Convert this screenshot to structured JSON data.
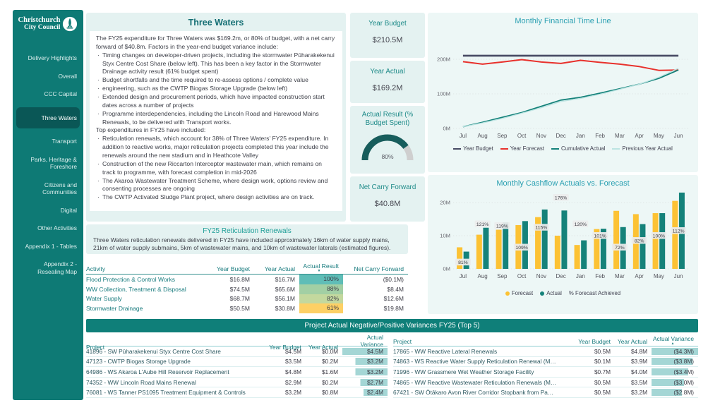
{
  "sidebar": {
    "logo_line1": "Christchurch",
    "logo_line2": "City Council",
    "items": [
      {
        "label": "Delivery Highlights",
        "selected": false
      },
      {
        "label": "Overall",
        "selected": false
      },
      {
        "label": "CCC Capital",
        "selected": false
      },
      {
        "label": "Three Waters",
        "selected": true
      },
      {
        "label": "Transport",
        "selected": false
      },
      {
        "label": "Parks, Heritage & Foreshore",
        "selected": false
      },
      {
        "label": "Citizens and Communities",
        "selected": false
      },
      {
        "label": "Digital",
        "selected": false
      },
      {
        "label": "Other Activities",
        "selected": false
      },
      {
        "label": "Appendix 1 - Tables",
        "selected": false
      },
      {
        "label": "Appendix 2 - Resealing Map",
        "selected": false
      }
    ]
  },
  "narrative": {
    "title": "Three Waters",
    "intro": "The FY25 expenditure for Three Waters was $169.2m, or 80% of budget, with a net carry forward of $40.8m.  Factors in the year-end budget variance include:",
    "bullets1": [
      "Timing changes on developer-driven projects, including the stormwater Pūharakekenui Styx Centre Cost Share (below left). This has been a key factor in the Stormwater Drainage activity result (61% budget spent)",
      "Budget shortfalls and the time required to re-assess options / complete value",
      "engineering, such as the CWTP Biogas Storage Upgrade (below left)",
      "Extended design and procurement periods, which have impacted construction start dates across a number of projects",
      "Programme interdependencies, including the Lincoln Road and Harewood Mains Renewals, to be delivered with Transport works."
    ],
    "mid": "Top expenditures in FY25 have included:",
    "bullets2": [
      "Reticulation renewals, which account for 38% of Three Waters' FY25 expenditure. In addition to reactive works, major reticulation projects completed this year include the renewals around the new stadium and in Heathcote Valley",
      "Construction of the new Riccarton Interceptor wastewater main, which remains on track to programme, with forecast completion in mid-2026",
      "The Akaroa Wastewater Treatment Scheme, where design work, options review and consenting processes are ongoing",
      "The CWTP Activated Sludge Plant project, where design activities are on track."
    ]
  },
  "kpis": [
    {
      "label": "Year Budget",
      "value": "$210.5M"
    },
    {
      "label": "Year Actual",
      "value": "$169.2M"
    },
    {
      "label": "Actual Result (% Budget Spent)",
      "value": "80%",
      "numeric": 80
    },
    {
      "label": "Net Carry Forward",
      "value": "$40.8M"
    }
  ],
  "retic": {
    "title": "FY25 Reticulation Renewals",
    "text": "Three Waters reticulation renewals delivered in FY25 have included approximately 16km of water supply mains, 21km of water supply submains, 5km of wastewater mains, and 10km of wastewater laterals (estimated figures)."
  },
  "activity_table": {
    "headers": [
      "Activity",
      "Year Budget",
      "Year Actual",
      "Actual Result",
      "Net Carry Forward"
    ],
    "rows": [
      {
        "activity": "Flood Protection & Control Works",
        "budget": "$16.8M",
        "actual": "$16.7M",
        "result": "100%",
        "result_color": "#5fbdb7",
        "carry": "($0.1M)"
      },
      {
        "activity": "WW Collection, Treatment & Disposal",
        "budget": "$74.5M",
        "actual": "$65.6M",
        "result": "88%",
        "result_color": "#a2cfa4",
        "carry": "$8.4M"
      },
      {
        "activity": "Water Supply",
        "budget": "$68.7M",
        "actual": "$56.1M",
        "result": "82%",
        "result_color": "#c3d89e",
        "carry": "$12.6M"
      },
      {
        "activity": "Stormwater Drainage",
        "budget": "$50.5M",
        "actual": "$30.8M",
        "result": "61%",
        "result_color": "#fdd065",
        "carry": "$19.8M"
      }
    ]
  },
  "variances": {
    "banner": "Project Actual Negative/Positive Variances FY25 (Top 5)",
    "headers": [
      "Project",
      "Year Budget",
      "Year Actual",
      "Actual Variance"
    ],
    "bar_color": "#a4d6d5",
    "left_rows": [
      {
        "project": "41896 - SW Pūharakekenui Styx Centre Cost Share",
        "budget": "$4.5M",
        "actual": "$0.0M",
        "variance": "$4.5M"
      },
      {
        "project": "47123 - CWTP Biogas Storage Upgrade",
        "budget": "$3.5M",
        "actual": "$0.2M",
        "variance": "$3.2M"
      },
      {
        "project": "64986 - WS Akaroa L'Aube Hill Reservoir Replacement",
        "budget": "$4.8M",
        "actual": "$1.6M",
        "variance": "$3.2M"
      },
      {
        "project": "74352 - WW Lincoln Road Mains Renewal",
        "budget": "$2.9M",
        "actual": "$0.2M",
        "variance": "$2.7M"
      },
      {
        "project": "76081 - WS Tanner PS1095 Treatment Equipment & Controls",
        "budget": "$3.2M",
        "actual": "$0.8M",
        "variance": "$2.4M"
      }
    ],
    "right_rows": [
      {
        "project": "17865 - WW Reactive Lateral  Renewals",
        "budget": "$0.5M",
        "actual": "$4.8M",
        "variance": "($4.3M)"
      },
      {
        "project": "74863 - WS Reactive Water Supply Reticulation Renewal (M…",
        "budget": "$0.1M",
        "actual": "$3.9M",
        "variance": "($3.8M)"
      },
      {
        "project": "71996 - WW Grassmere Wet Weather Storage Facility",
        "budget": "$0.7M",
        "actual": "$4.0M",
        "variance": "($3.4M)"
      },
      {
        "project": "74865 - WW Reactive Wastewater Reticulation Renewals (M…",
        "budget": "$0.5M",
        "actual": "$3.5M",
        "variance": "($3.0M)"
      },
      {
        "project": "67421 - SW Ōtākaro Avon River Corridor Stopbank from Pa…",
        "budget": "$0.5M",
        "actual": "$3.2M",
        "variance": "($2.8M)"
      }
    ]
  },
  "icons": {
    "sort_desc": "▼",
    "sort_asc": "▲"
  },
  "colors": {
    "sidebar_teal": "#0e7a75",
    "selected_pill": "#0a5756",
    "banner_teal": "#0f7f79",
    "heading_teal": "#156f74",
    "chart_title_teal": "#2ba0b2",
    "gauge_fill": "#175d5c",
    "gauge_track": "#cfcfcf"
  },
  "chart_data": [
    {
      "type": "line",
      "title": "Monthly Financial Time Line",
      "x": [
        "Jul",
        "Aug",
        "Sep",
        "Oct",
        "Nov",
        "Dec",
        "Jan",
        "Feb",
        "Mar",
        "Apr",
        "May",
        "Jun"
      ],
      "ylim": [
        0,
        250
      ],
      "yticks": [
        [
          0,
          "0M"
        ],
        [
          100,
          "100M"
        ],
        [
          200,
          "200M"
        ]
      ],
      "grid": true,
      "legend_position": "bottom",
      "series": [
        {
          "name": "Year Budget",
          "color": "#474a63",
          "values": [
            210.5,
            210.5,
            210.5,
            210.5,
            210.5,
            210.5,
            210.5,
            210.5,
            210.5,
            210.5,
            210.5,
            210.5
          ]
        },
        {
          "name": "Year Forecast",
          "color": "#e8312c",
          "values": [
            193,
            186,
            192,
            199,
            192,
            188,
            197,
            191,
            186,
            179,
            168,
            169
          ]
        },
        {
          "name": "Cumulative Actual",
          "color": "#15827a",
          "values": [
            5,
            18,
            32,
            46,
            64,
            82,
            90,
            102,
            115,
            128,
            145,
            169
          ]
        },
        {
          "name": "Previous Year Actual",
          "color": "#bce4e2",
          "values": [
            5,
            16,
            29,
            44,
            60,
            78,
            87,
            99,
            113,
            128,
            148,
            174
          ]
        }
      ]
    },
    {
      "type": "bar",
      "title": "Monthly Cashflow Actuals vs. Forecast",
      "categories": [
        "Jul",
        "Aug",
        "Sep",
        "Oct",
        "Nov",
        "Dec",
        "Jan",
        "Feb",
        "Mar",
        "Apr",
        "May",
        "Jun"
      ],
      "ylim": [
        0,
        23.6
      ],
      "yticks": [
        [
          0,
          "0M"
        ],
        [
          10,
          "10M"
        ],
        [
          20,
          "20M"
        ]
      ],
      "grid": true,
      "legend_position": "bottom",
      "series": [
        {
          "name": "Forecast",
          "color": "#fcc234",
          "values": [
            6.5,
            10.3,
            11.8,
            13.2,
            15.6,
            10.0,
            7.2,
            12.0,
            17.5,
            16.5,
            16.8,
            20.5
          ]
        },
        {
          "name": "Actual",
          "color": "#15827a",
          "values": [
            5.2,
            12.4,
            14.0,
            14.4,
            17.9,
            17.6,
            8.6,
            12.1,
            12.6,
            13.5,
            16.8,
            23.0
          ]
        }
      ],
      "pct_series": {
        "name": "% Forecast Achieved",
        "values": [
          81,
          121,
          119,
          109,
          115,
          176,
          120,
          101,
          72,
          82,
          100,
          112
        ],
        "label_heights": [
          2,
          13.5,
          13,
          6.5,
          12.5,
          21.5,
          13.5,
          10,
          6.5,
          8.5,
          10,
          11.5
        ]
      }
    }
  ]
}
